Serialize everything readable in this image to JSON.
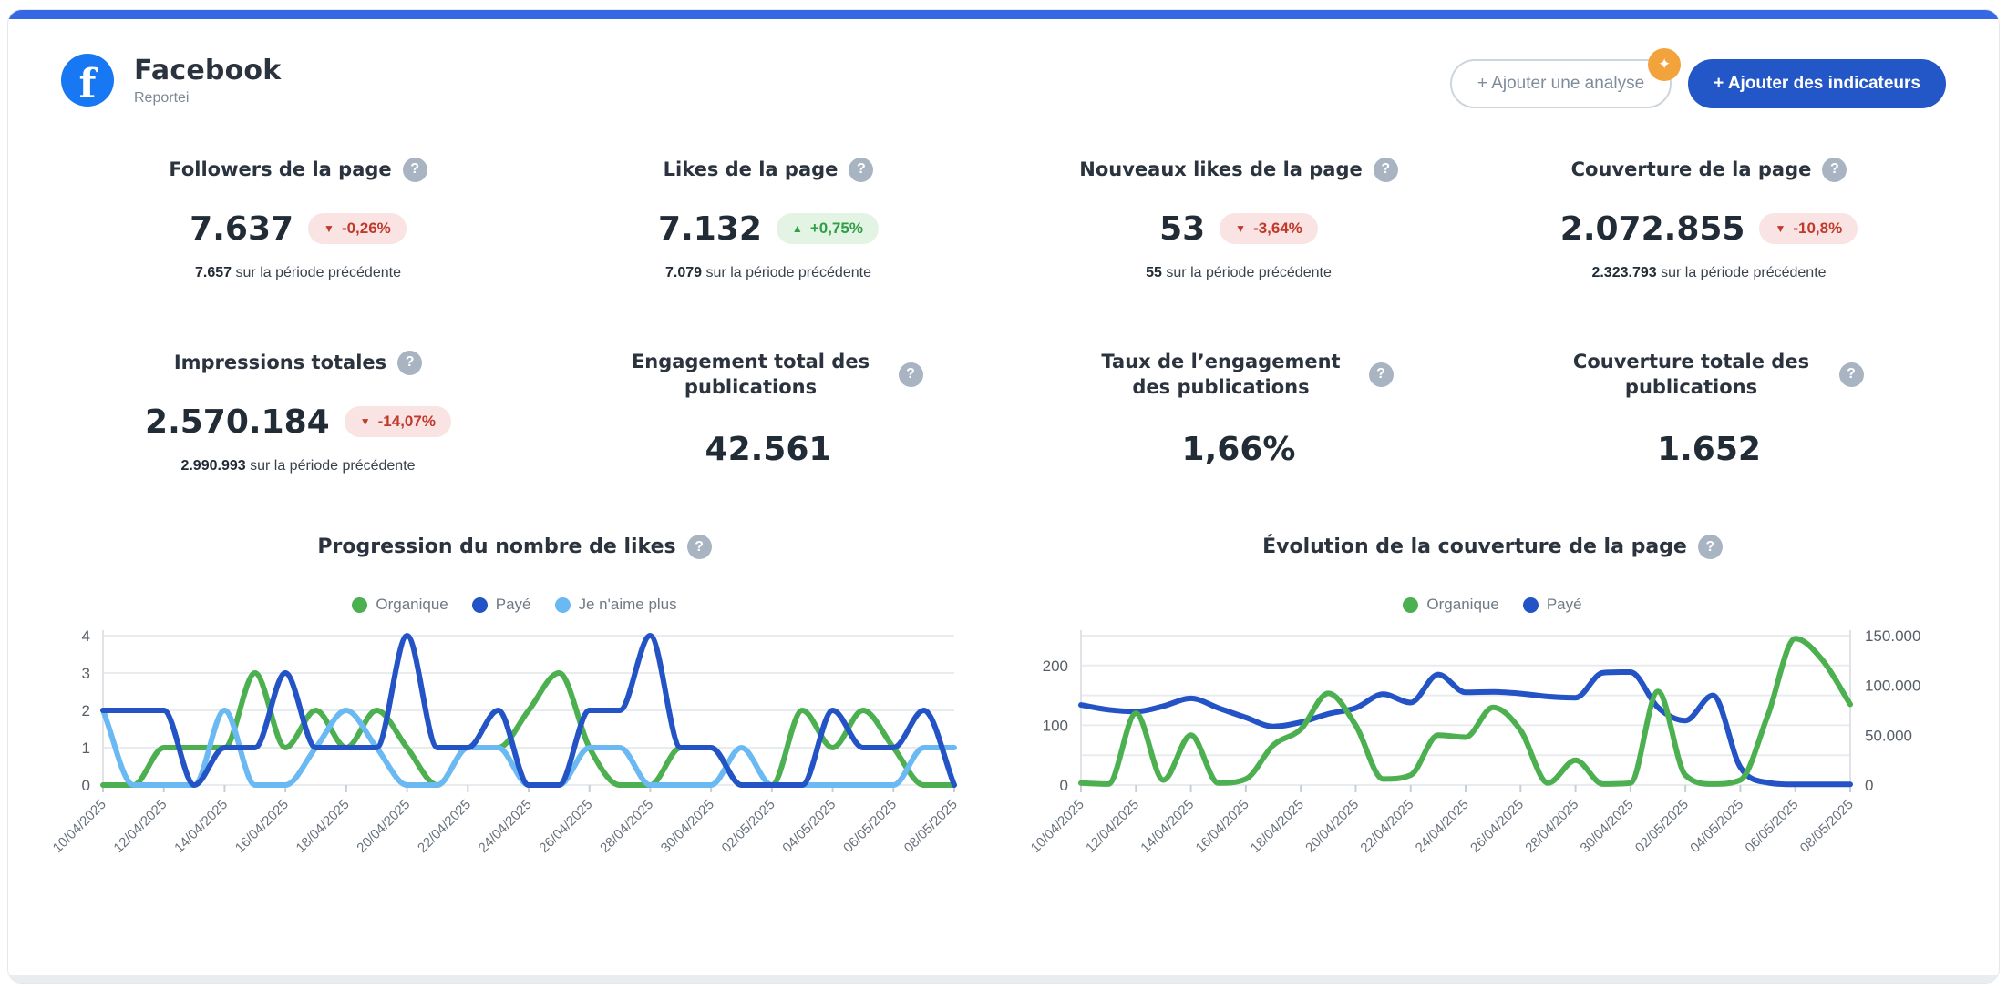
{
  "header": {
    "platform": "Facebook",
    "brand": "Reportei",
    "add_analysis_label": "+ Ajouter une analyse",
    "ai_badge_icon": "sparkle",
    "add_indicators_label": "+ Ajouter des indicateurs"
  },
  "colors": {
    "accent_bar": "#3668e3",
    "facebook_blue": "#1877f2",
    "primary_button": "#2356c7",
    "badge_down_bg": "#f9e3e3",
    "badge_down_text": "#c0392b",
    "badge_up_bg": "#e3f3e4",
    "badge_up_text": "#2f9e44",
    "organic_green": "#4caf50",
    "paid_blue": "#2353c5",
    "unlike_lightblue": "#6ab9f2"
  },
  "prev_suffix": "sur la période précédente",
  "kpis": [
    {
      "title": "Followers de la page",
      "value": "7.637",
      "delta": "-0,26%",
      "delta_dir": "down",
      "prev": "7.657",
      "two_line": false
    },
    {
      "title": "Likes de la page",
      "value": "7.132",
      "delta": "+0,75%",
      "delta_dir": "up",
      "prev": "7.079",
      "two_line": false
    },
    {
      "title": "Nouveaux likes de la page",
      "value": "53",
      "delta": "-3,64%",
      "delta_dir": "down",
      "prev": "55",
      "two_line": false
    },
    {
      "title": "Couverture de la page",
      "value": "2.072.855",
      "delta": "-10,8%",
      "delta_dir": "down",
      "prev": "2.323.793",
      "two_line": false
    },
    {
      "title": "Impressions totales",
      "value": "2.570.184",
      "delta": "-14,07%",
      "delta_dir": "down",
      "prev": "2.990.993",
      "two_line": false
    },
    {
      "title": "Engagement total des publications",
      "value": "42.561",
      "delta": null,
      "delta_dir": null,
      "prev": null,
      "two_line": true
    },
    {
      "title": "Taux de l’engagement des publications",
      "value": "1,66%",
      "delta": null,
      "delta_dir": null,
      "prev": null,
      "two_line": true
    },
    {
      "title": "Couverture totale des publications",
      "value": "1.652",
      "delta": null,
      "delta_dir": null,
      "prev": null,
      "two_line": true
    }
  ],
  "chart_data": [
    {
      "type": "line",
      "title": "Progression du nombre de likes",
      "legend_position": "top",
      "grid": true,
      "x_tick_labels": [
        "10/04/2025",
        "12/04/2025",
        "14/04/2025",
        "16/04/2025",
        "18/04/2025",
        "20/04/2025",
        "22/04/2025",
        "24/04/2025",
        "26/04/2025",
        "28/04/2025",
        "30/04/2025",
        "02/05/2025",
        "04/05/2025",
        "06/05/2025",
        "08/05/2025"
      ],
      "n_points": 29,
      "y_axis": {
        "min": 0,
        "max": 4,
        "ticks": [
          0,
          1,
          2,
          3,
          4
        ]
      },
      "grid_values": [
        0,
        1,
        2,
        3,
        4
      ],
      "draw_order": [
        0,
        2,
        1
      ],
      "series": [
        {
          "name": "Organique",
          "color": "#4caf50",
          "axis": "left",
          "values": [
            0,
            0,
            1,
            1,
            1,
            3,
            1,
            2,
            1,
            2,
            1,
            0,
            1,
            1,
            2,
            3,
            1,
            0,
            0,
            1,
            1,
            0,
            0,
            2,
            1,
            2,
            1,
            0,
            0
          ]
        },
        {
          "name": "Payé",
          "color": "#2353c5",
          "axis": "left",
          "values": [
            2,
            2,
            2,
            0,
            1,
            1,
            3,
            1,
            1,
            1,
            4,
            1,
            1,
            2,
            0,
            0,
            2,
            2,
            4,
            1,
            1,
            0,
            0,
            0,
            2,
            1,
            1,
            2,
            0
          ]
        },
        {
          "name": "Je n'aime plus",
          "color": "#6ab9f2",
          "axis": "left",
          "values": [
            2,
            0,
            0,
            0,
            2,
            0,
            0,
            1,
            2,
            1,
            0,
            0,
            1,
            1,
            0,
            0,
            1,
            1,
            0,
            0,
            0,
            1,
            0,
            0,
            0,
            0,
            0,
            1,
            1
          ]
        }
      ]
    },
    {
      "type": "line",
      "title": "Évolution de la couverture de la page",
      "legend_position": "top",
      "grid": true,
      "x_tick_labels": [
        "10/04/2025",
        "12/04/2025",
        "14/04/2025",
        "16/04/2025",
        "18/04/2025",
        "20/04/2025",
        "22/04/2025",
        "24/04/2025",
        "26/04/2025",
        "28/04/2025",
        "30/04/2025",
        "02/05/2025",
        "04/05/2025",
        "06/05/2025",
        "08/05/2025"
      ],
      "n_points": 29,
      "y_axis": {
        "min": 0,
        "max": 250,
        "ticks": [
          0,
          100,
          200
        ]
      },
      "y_axis_right": {
        "min": 0,
        "max": 150000,
        "tick_labels": [
          "0",
          "50.000",
          "100.000",
          "150.000"
        ]
      },
      "grid_values": [
        0,
        50,
        100,
        150,
        200,
        250
      ],
      "draw_order": [
        1,
        0
      ],
      "series": [
        {
          "name": "Organique",
          "color": "#4caf50",
          "axis": "right",
          "values": [
            2000,
            1000,
            72000,
            5000,
            50000,
            2000,
            6000,
            40000,
            56000,
            92000,
            60000,
            6000,
            10000,
            50000,
            48000,
            78000,
            55000,
            2000,
            25000,
            1000,
            2000,
            94000,
            10000,
            1000,
            5000,
            70000,
            147000,
            125000,
            81000
          ]
        },
        {
          "name": "Payé",
          "color": "#2353c5",
          "axis": "left",
          "values": [
            134,
            126,
            123,
            132,
            145,
            129,
            113,
            98,
            105,
            119,
            129,
            152,
            138,
            185,
            155,
            156,
            153,
            148,
            146,
            188,
            189,
            130,
            108,
            150,
            30,
            4,
            1,
            1,
            1
          ]
        }
      ]
    }
  ]
}
